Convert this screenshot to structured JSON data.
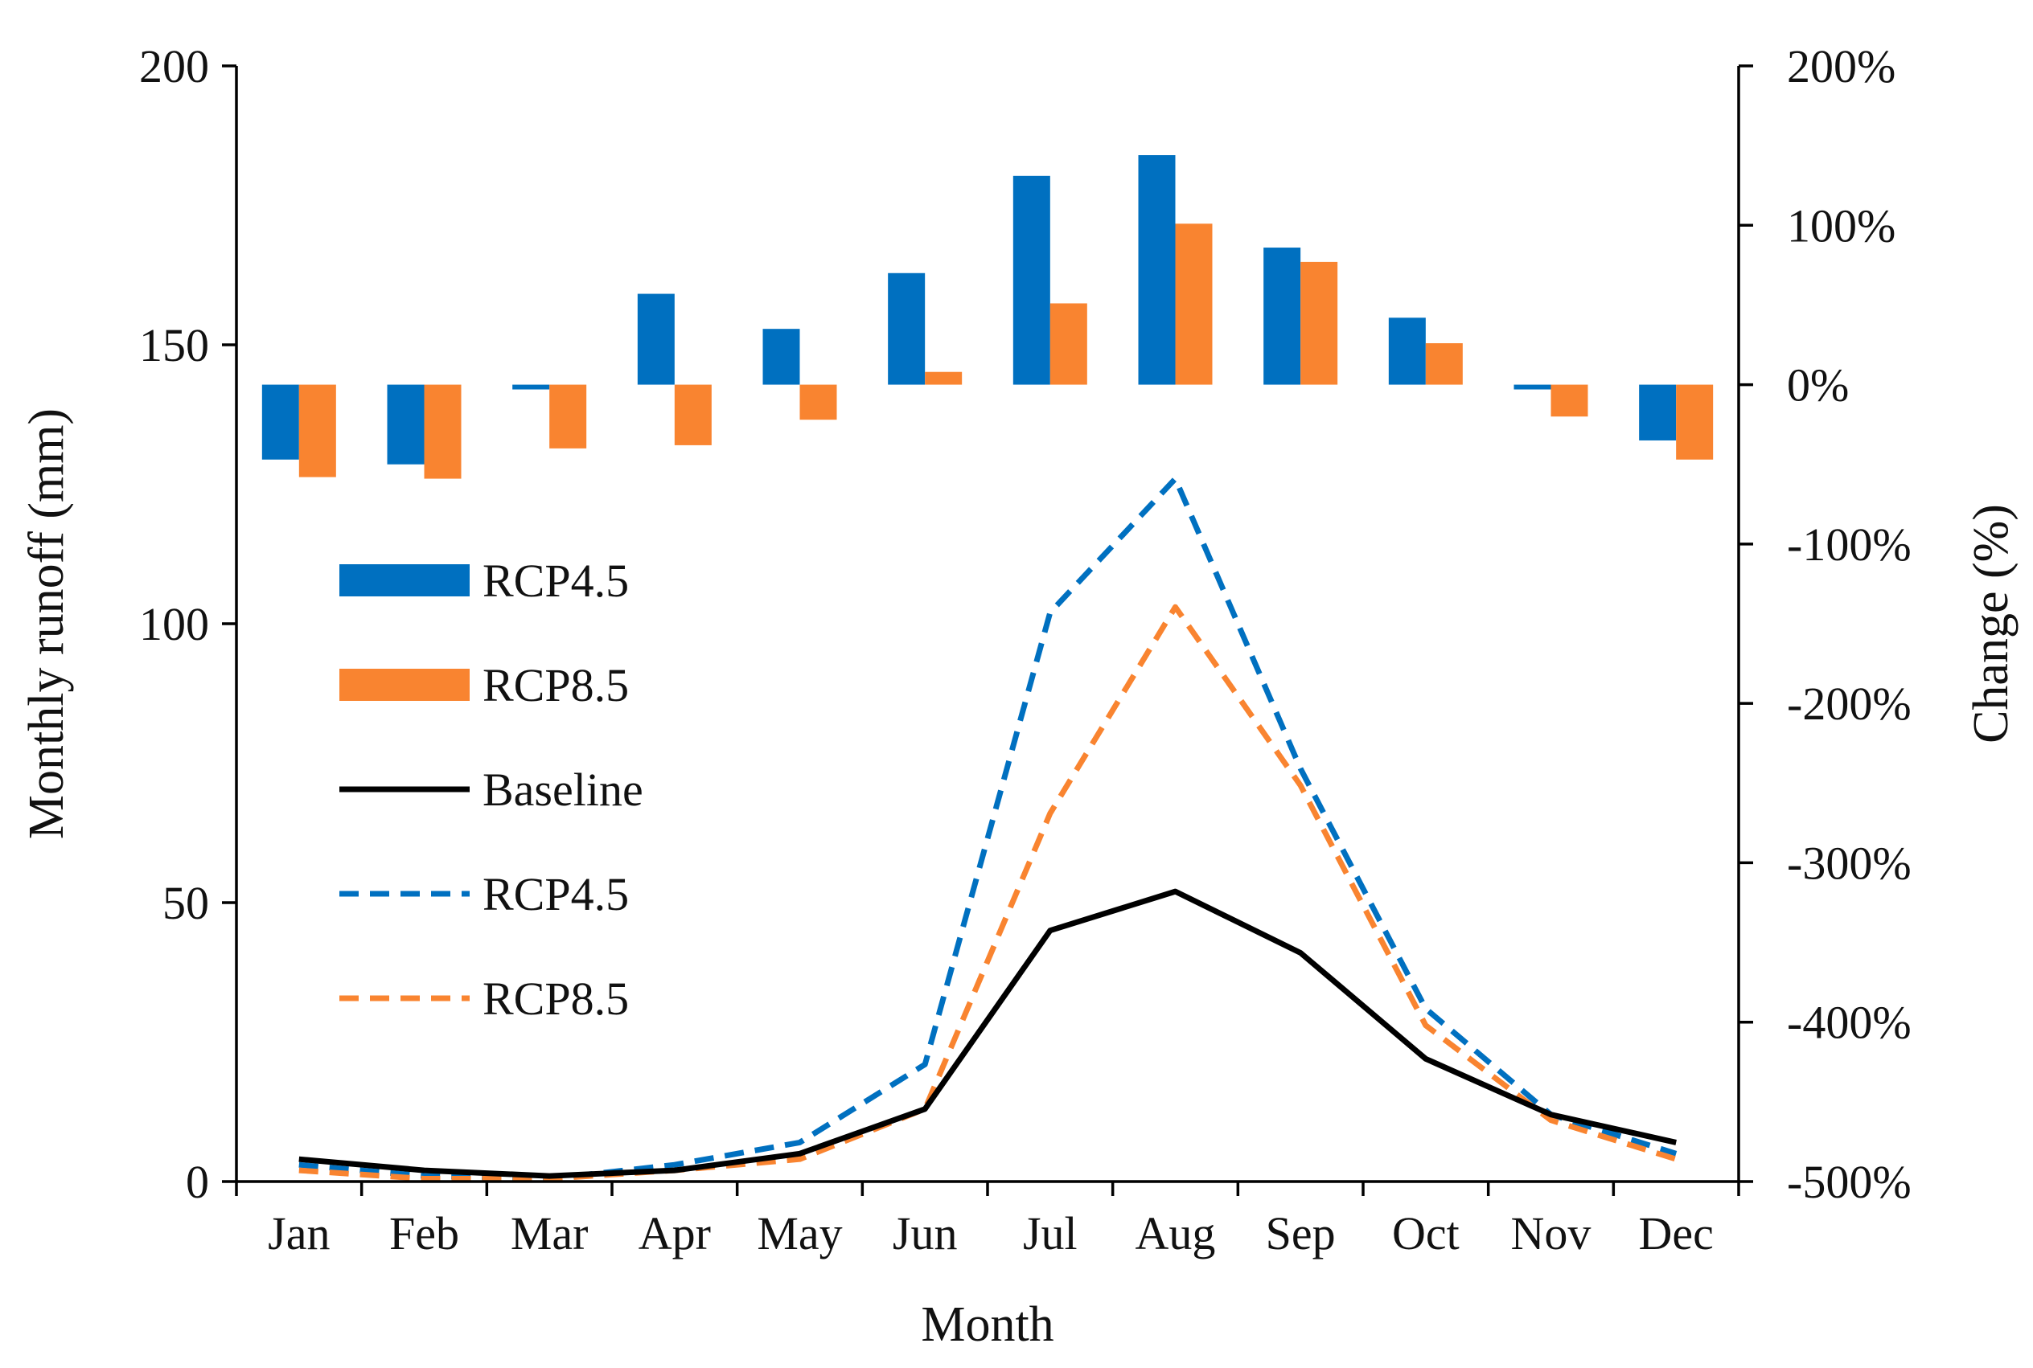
{
  "chart_data": {
    "type": "bar",
    "title": "",
    "xlabel": "Month",
    "ylabel": "Monthly runoff (mm)",
    "y2label": "Change (%)",
    "categories": [
      "Jan",
      "Feb",
      "Mar",
      "Apr",
      "May",
      "Jun",
      "Jul",
      "Aug",
      "Sep",
      "Oct",
      "Nov",
      "Dec"
    ],
    "ylim": [
      0,
      200
    ],
    "yticks": [
      0,
      50,
      100,
      150,
      200
    ],
    "y2lim": [
      -500,
      200
    ],
    "y2ticks": [
      -500,
      -400,
      -300,
      -200,
      -100,
      0,
      100,
      200
    ],
    "y2tick_labels": [
      "-500%",
      "-400%",
      "-300%",
      "-200%",
      "-100%",
      "0%",
      "100%",
      "200%"
    ],
    "grid": false,
    "legend_position": "left-center",
    "bar_series": [
      {
        "name": "RCP4.5",
        "axis": "right",
        "color": "#0070C0",
        "values": [
          -47,
          -50,
          -3,
          57,
          35,
          70,
          131,
          144,
          86,
          42,
          -3,
          -35
        ]
      },
      {
        "name": "RCP8.5",
        "axis": "right",
        "color": "#F98430",
        "values": [
          -58,
          -59,
          -40,
          -38,
          -22,
          8,
          51,
          101,
          77,
          26,
          -20,
          -47
        ]
      }
    ],
    "line_series": [
      {
        "name": "Baseline",
        "axis": "left",
        "color": "#000000",
        "style": "solid",
        "values": [
          4,
          2,
          1,
          2,
          5,
          13,
          45,
          52,
          41,
          22,
          12,
          7
        ]
      },
      {
        "name": "RCP4.5",
        "axis": "left",
        "color": "#0070C0",
        "style": "dashed",
        "values": [
          3,
          1,
          0.5,
          3,
          7,
          21,
          102,
          126,
          74,
          31,
          12,
          5
        ]
      },
      {
        "name": "RCP8.5",
        "axis": "left",
        "color": "#F98430",
        "style": "dashed",
        "values": [
          2,
          0.5,
          0.5,
          2,
          4,
          13,
          66,
          103,
          71,
          28,
          11,
          4
        ]
      }
    ],
    "legend": [
      {
        "label": "RCP4.5",
        "kind": "bar",
        "color": "#0070C0"
      },
      {
        "label": "RCP8.5",
        "kind": "bar",
        "color": "#F98430"
      },
      {
        "label": "Baseline",
        "kind": "solid",
        "color": "#000000"
      },
      {
        "label": "RCP4.5",
        "kind": "dashed",
        "color": "#0070C0"
      },
      {
        "label": "RCP8.5",
        "kind": "dashed",
        "color": "#F98430"
      }
    ]
  }
}
